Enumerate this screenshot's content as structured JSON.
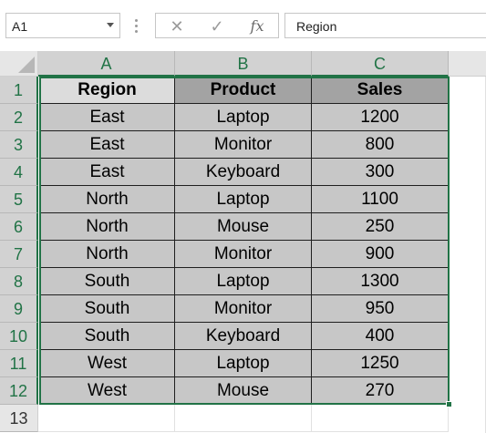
{
  "name_box": {
    "value": "A1"
  },
  "formula_bar": {
    "value": "Region",
    "fx_label": "fx",
    "cancel_glyph": "✕",
    "confirm_glyph": "✓"
  },
  "columns": [
    "A",
    "B",
    "C"
  ],
  "row_numbers": [
    "1",
    "2",
    "3",
    "4",
    "5",
    "6",
    "7",
    "8",
    "9",
    "10",
    "11",
    "12",
    "13"
  ],
  "table": {
    "headers": [
      "Region",
      "Product",
      "Sales"
    ],
    "rows": [
      [
        "East",
        "Laptop",
        "1200"
      ],
      [
        "East",
        "Monitor",
        "800"
      ],
      [
        "East",
        "Keyboard",
        "300"
      ],
      [
        "North",
        "Laptop",
        "1100"
      ],
      [
        "North",
        "Mouse",
        "250"
      ],
      [
        "North",
        "Monitor",
        "900"
      ],
      [
        "South",
        "Laptop",
        "1300"
      ],
      [
        "South",
        "Monitor",
        "950"
      ],
      [
        "South",
        "Keyboard",
        "400"
      ],
      [
        "West",
        "Laptop",
        "1250"
      ],
      [
        "West",
        "Mouse",
        "270"
      ]
    ]
  },
  "colors": {
    "accent": "#217346",
    "selected_fill": "#c7c7c7",
    "header_fill": "#a3a3a3"
  }
}
